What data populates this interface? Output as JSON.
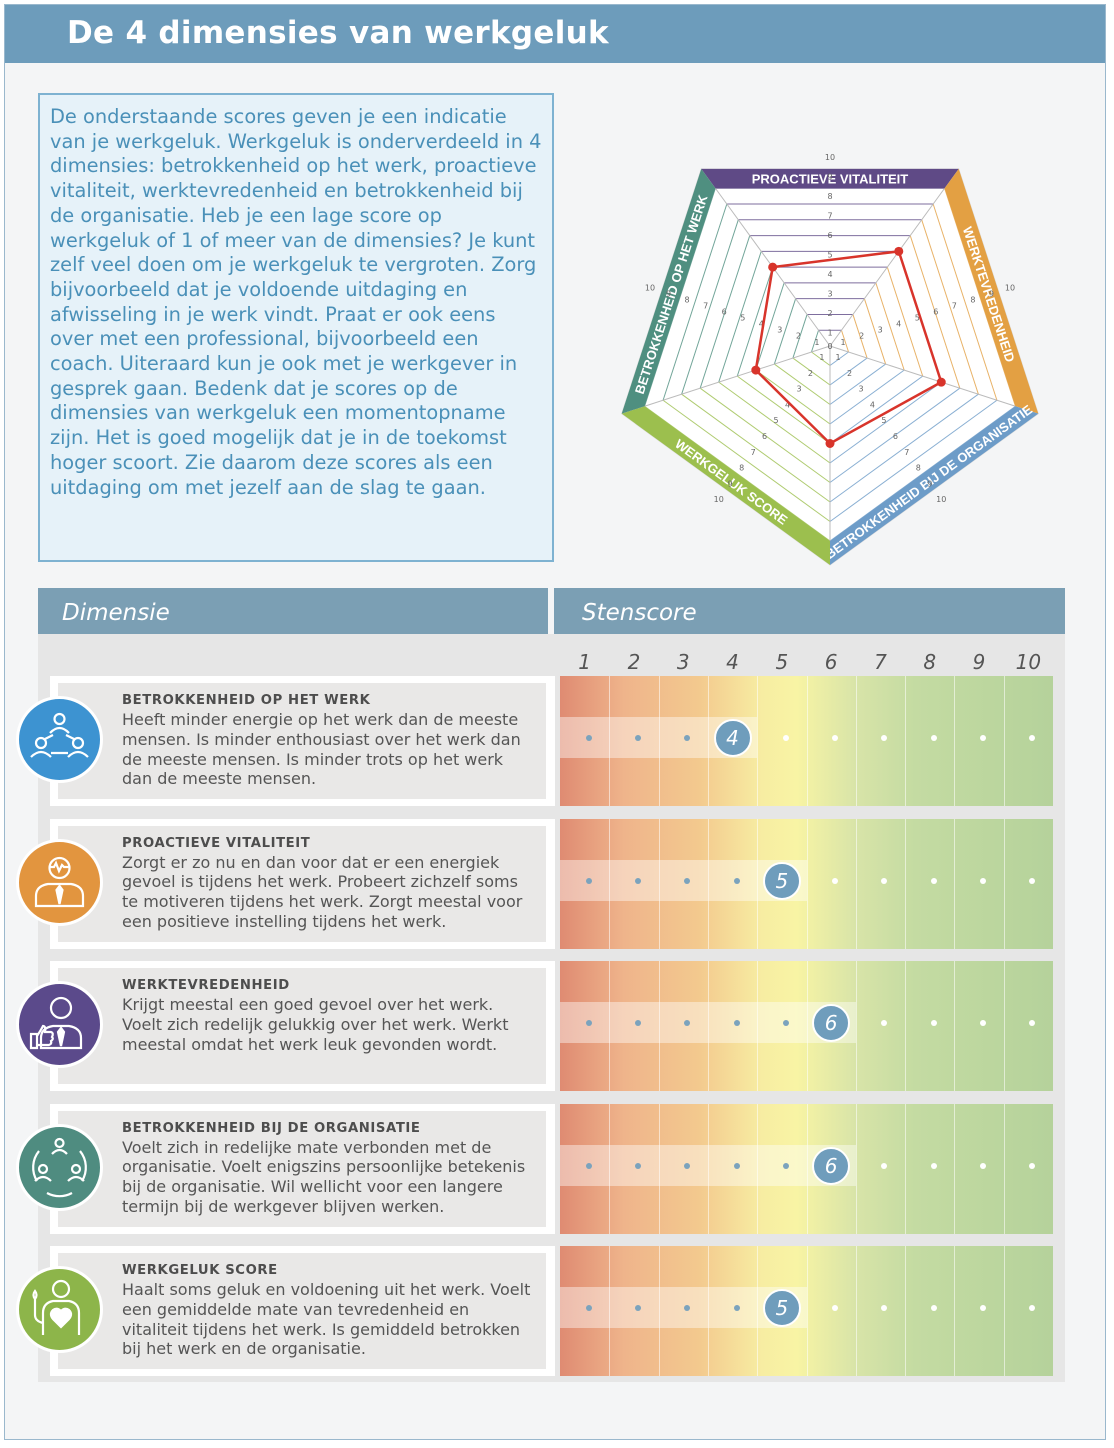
{
  "title": "De 4 dimensies van werkgeluk",
  "intro": "De onderstaande scores geven je een indicatie van je werkgeluk. Werkgeluk is onderverdeeld in 4 dimensies: betrokkenheid op het werk, proactieve vitaliteit, werktevredenheid en betrokkenheid bij de organisatie. Heb je een lage score op werkgeluk of 1 of meer van de dimensies? Je kunt zelf veel doen om je werkgeluk te vergroten. Zorg bijvoorbeeld dat je voldoende uitdaging en afwisseling in je werk vindt. Praat er ook eens over met een professional, bijvoorbeeld een coach. Uiteraard kun je ook met je werkgever in gesprek gaan. Bedenk dat je scores op de dimensies van werkgeluk een momentopname zijn. Het is goed mogelijk dat je in de toekomst hoger scoort. Zie daarom deze scores als een uitdaging om met jezelf aan de slag te gaan.",
  "radar": {
    "axes": [
      {
        "label": "PROACTIEVE VITALITEIT",
        "color": "#5f4a86"
      },
      {
        "label": "WERKTEVREDENHEID",
        "color": "#e3a043"
      },
      {
        "label": "BETROKKENHEID BIJ DE ORGANISATIE",
        "color": "#6d9cc8"
      },
      {
        "label": "WERKGELUK SCORE",
        "color": "#9cbf4e"
      },
      {
        "label": "BETROKKENHEID OP HET WERK",
        "color": "#4f8f80"
      }
    ],
    "scale_min": 0,
    "scale_max": 10,
    "tick_labels": [
      "0",
      "1",
      "2",
      "3",
      "4",
      "5",
      "6",
      "7",
      "8",
      "9",
      "10"
    ],
    "scores": [
      5,
      6,
      6,
      5,
      4
    ],
    "line_color": "#d8342b"
  },
  "table": {
    "col_dimension": "Dimensie",
    "col_stenscore": "Stenscore",
    "scale_numbers": [
      "1",
      "2",
      "3",
      "4",
      "5",
      "6",
      "7",
      "8",
      "9",
      "10"
    ],
    "rows": [
      {
        "title": "BETROKKENHEID OP HET WERK",
        "description": "Heeft minder energie op het werk dan de meeste mensen. Is minder enthousiast over het werk dan de meeste mensen. Is minder trots op het werk dan de meeste mensen.",
        "score": 4,
        "score_label": "4",
        "icon": "people-network-icon",
        "icon_color": "#3d93d1"
      },
      {
        "title": "PROACTIEVE VITALITEIT",
        "description": "Zorgt er zo nu en dan voor dat er een energiek gevoel is tijdens het werk. Probeert zichzelf soms te motiveren tijdens het werk. Zorgt meestal voor een positieve instelling tijdens het werk.",
        "score": 5,
        "score_label": "5",
        "icon": "businessman-pulse-icon",
        "icon_color": "#e2953f"
      },
      {
        "title": "WERKTEVREDENHEID",
        "description": "Krijgt meestal een goed gevoel over het werk. Voelt zich redelijk gelukkig over het werk. Werkt meestal omdat het werk leuk gevonden wordt.",
        "score": 6,
        "score_label": "6",
        "icon": "businessman-thumbs-up-icon",
        "icon_color": "#5b4a8b"
      },
      {
        "title": "BETROKKENHEID BIJ DE ORGANISATIE",
        "description": "Voelt zich in redelijke mate verbonden met de organisatie. Voelt enigszins persoonlijke betekenis bij de organisatie. Wil wellicht voor een langere termijn bij de werkgever blijven werken.",
        "score": 6,
        "score_label": "6",
        "icon": "people-cycle-icon",
        "icon_color": "#4f8c80"
      },
      {
        "title": "WERKGELUK SCORE",
        "description": "Haalt soms geluk en voldoening uit het werk. Voelt een gemiddelde mate van tevredenheid en vitaliteit tijdens het werk. Is gemiddeld betrokken bij het werk en de organisatie.",
        "score": 5,
        "score_label": "5",
        "icon": "person-heart-icon",
        "icon_color": "#8db54a"
      }
    ]
  }
}
